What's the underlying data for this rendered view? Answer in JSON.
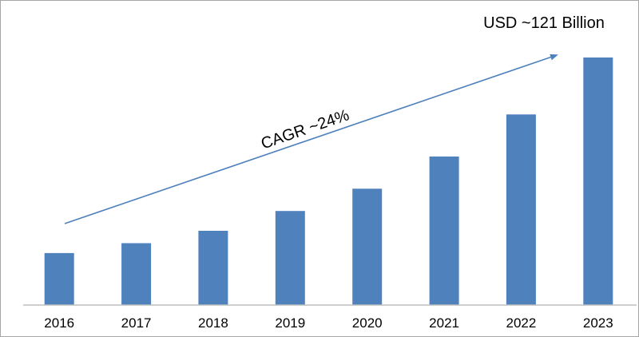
{
  "chart_data": {
    "type": "bar",
    "categories": [
      "2016",
      "2017",
      "2018",
      "2019",
      "2020",
      "2021",
      "2022",
      "2023"
    ],
    "values": [
      21,
      25,
      30,
      38,
      47,
      60,
      77,
      100
    ],
    "y_axis_visible": false,
    "grid": false,
    "legend": "none",
    "bar_color": "#4F81BD",
    "annotations": {
      "cagr_label": "CAGR ~24%",
      "end_value_label": "USD ~121 Billion"
    },
    "trend_arrow_color": "#4F81BD"
  }
}
